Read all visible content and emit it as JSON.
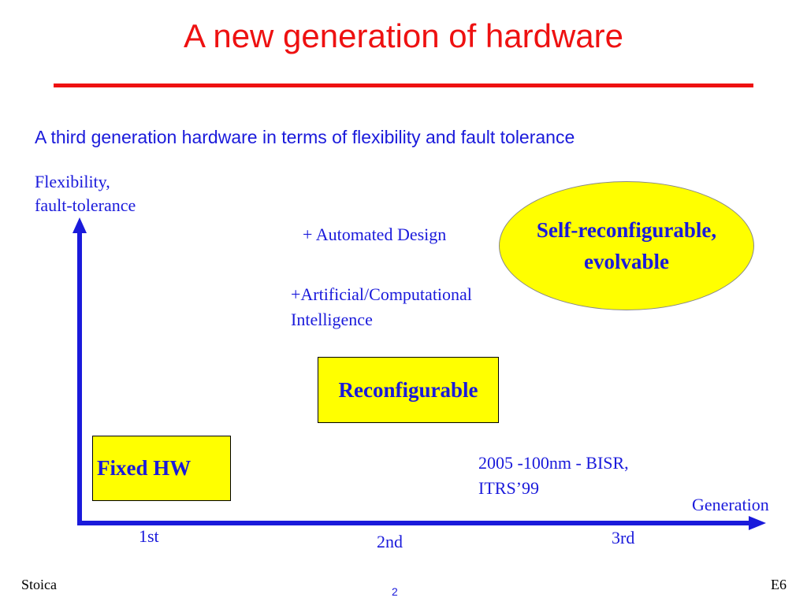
{
  "slide": {
    "title": "A new generation of hardware",
    "subtitle": "A third generation hardware in terms of flexibility and fault tolerance"
  },
  "diagram": {
    "y_axis_label_line1": "Flexibility,",
    "y_axis_label_line2": "fault-tolerance",
    "x_axis_label": "Generation",
    "ticks": [
      "1st",
      "2nd",
      "3rd"
    ],
    "boxes": {
      "fixed": "Fixed HW",
      "reconfigurable": "Reconfigurable",
      "self_line1": "Self-reconfigurable,",
      "self_line2": "evolvable"
    },
    "annotations": {
      "automated": "+ Automated Design",
      "ai_line1": "+Artificial/Computational",
      "ai_line2": "Intelligence",
      "bisr_line1": "2005 -100nm - BISR,",
      "bisr_line2": "ITRS’99"
    }
  },
  "footer": {
    "author": "Stoica",
    "page": "2",
    "code": "E6"
  },
  "colors": {
    "title": "#ee1111",
    "text": "#1a1adb",
    "highlight": "#ffff00"
  }
}
